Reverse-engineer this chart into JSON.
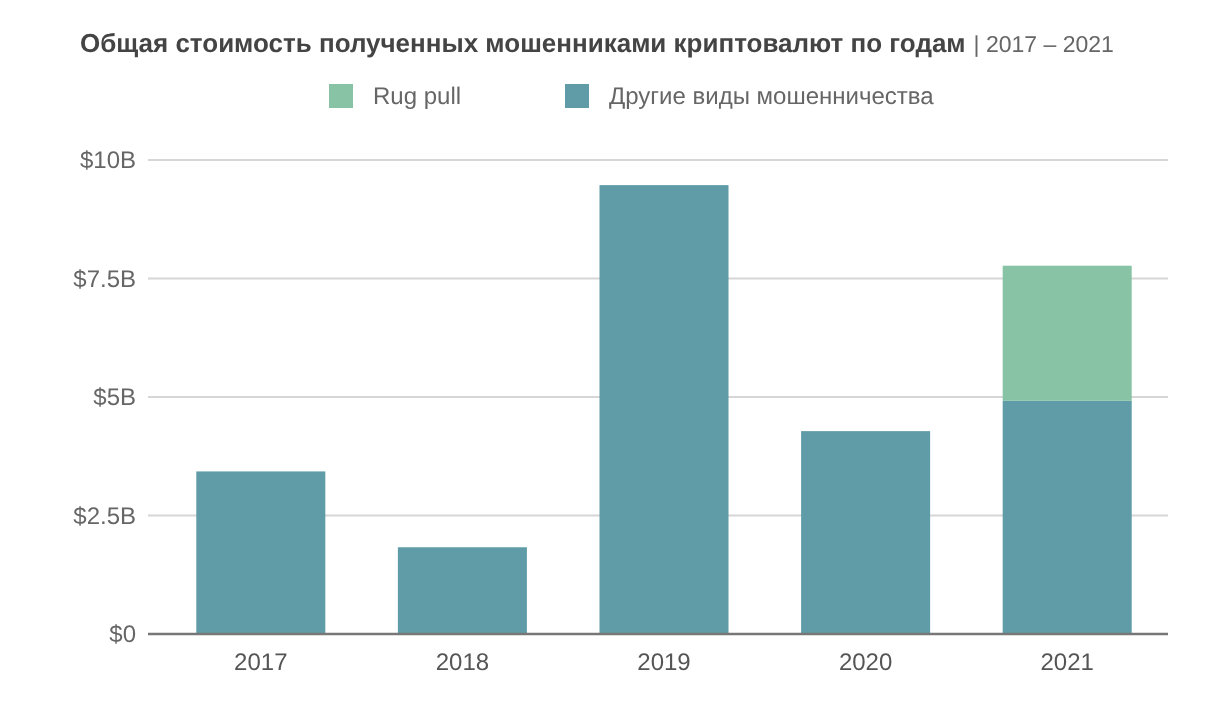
{
  "chart_data": {
    "type": "bar",
    "title": "Общая стоимость полученных мошенниками криптовалют по годам",
    "subtitle": "| 2017 – 2021",
    "categories": [
      "2017",
      "2018",
      "2019",
      "2020",
      "2021"
    ],
    "stacked": true,
    "series": [
      {
        "name": "Другие виды мошенничества",
        "color": "#5f9ca8",
        "values": [
          3.43,
          1.83,
          9.47,
          4.28,
          4.92
        ]
      },
      {
        "name": "Rug pull",
        "color": "#87c3a4",
        "values": [
          null,
          null,
          null,
          null,
          2.85
        ]
      }
    ],
    "ylim": [
      0,
      10
    ],
    "yticks": [
      {
        "value": 0,
        "label": "$0"
      },
      {
        "value": 2.5,
        "label": "$2.5B"
      },
      {
        "value": 5,
        "label": "$5B"
      },
      {
        "value": 7.5,
        "label": "$7.5B"
      },
      {
        "value": 10,
        "label": "$10B"
      }
    ],
    "grid": "y",
    "legend": "top"
  }
}
